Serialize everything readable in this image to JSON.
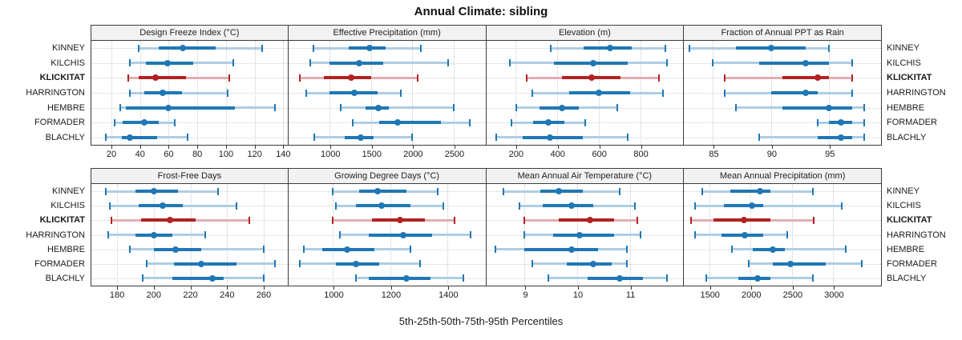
{
  "title": "Annual Climate: sibling",
  "caption": "5th-25th-50th-75th-95th Percentiles",
  "colors": {
    "series_blue": "#1f77b4",
    "series_blue_light": "#aecde4",
    "highlight_red": "#b22222",
    "highlight_red_light": "#e2aeae",
    "header_bg": "#f2f2f2",
    "panel_border": "#3c3c3c",
    "gridline": "#c9c9c9",
    "text": "#1a1a1a"
  },
  "chart_data": {
    "type": "trellis_percentile_dotplot",
    "title": "Annual Climate: sibling",
    "xlabel_caption": "5th-25th-50th-75th-95th Percentiles",
    "percentiles": [
      5,
      25,
      50,
      75,
      95
    ],
    "legend_position": "none",
    "grid": true,
    "layout": {
      "rows": 2,
      "cols": 4
    },
    "sites": [
      "KINNEY",
      "KILCHIS",
      "KLICKITAT",
      "HARRINGTON",
      "HEMBRE",
      "FORMADER",
      "BLACHLY"
    ],
    "highlight_site": "KLICKITAT",
    "panels": [
      {
        "title": "Design Freeze Index (°C)",
        "ticks": [
          20,
          40,
          60,
          80,
          100,
          120,
          140
        ],
        "domain": [
          6,
          143
        ],
        "values": [
          [
            39,
            53,
            70,
            93,
            125
          ],
          [
            33,
            44,
            59,
            77,
            105
          ],
          [
            32,
            39,
            51,
            72,
            102
          ],
          [
            33,
            43,
            56,
            69,
            101
          ],
          [
            26,
            30,
            60,
            106,
            134
          ],
          [
            22,
            28,
            43,
            53,
            64
          ],
          [
            16,
            27,
            33,
            52,
            73
          ]
        ]
      },
      {
        "title": "Effective Precipitation (mm)",
        "ticks": [
          1000,
          1500,
          2000,
          2500
        ],
        "domain": [
          500,
          2875
        ],
        "values": [
          [
            800,
            1230,
            1480,
            1680,
            2100
          ],
          [
            760,
            1000,
            1360,
            1650,
            2430
          ],
          [
            640,
            930,
            1260,
            1500,
            2060
          ],
          [
            720,
            1000,
            1300,
            1580,
            1860
          ],
          [
            1130,
            1430,
            1590,
            1720,
            2500
          ],
          [
            1280,
            1600,
            1820,
            2350,
            2700
          ],
          [
            810,
            1180,
            1380,
            1530,
            2000
          ]
        ]
      },
      {
        "title": "Elevation (m)",
        "ticks": [
          200,
          400,
          600,
          800
        ],
        "domain": [
          60,
          1003
        ],
        "values": [
          [
            370,
            530,
            655,
            760,
            920
          ],
          [
            175,
            385,
            575,
            740,
            930
          ],
          [
            255,
            425,
            565,
            705,
            890
          ],
          [
            280,
            460,
            600,
            750,
            910
          ],
          [
            205,
            315,
            425,
            505,
            690
          ],
          [
            180,
            285,
            360,
            435,
            535
          ],
          [
            110,
            235,
            365,
            525,
            740
          ]
        ]
      },
      {
        "title": "Fraction of Annual PPT as Rain",
        "ticks": [
          85,
          90,
          95
        ],
        "domain": [
          82.5,
          99.4
        ],
        "values": [
          [
            83,
            87,
            90,
            93,
            95
          ],
          [
            85,
            89,
            93,
            95,
            97
          ],
          [
            86,
            91,
            94,
            95,
            97
          ],
          [
            86,
            90,
            93,
            94,
            97
          ],
          [
            87,
            91,
            95,
            97,
            98
          ],
          [
            94,
            95,
            96,
            97,
            98
          ],
          [
            89,
            94,
            96,
            97,
            98
          ]
        ]
      },
      {
        "title": "Frost-Free Days",
        "ticks": [
          180,
          200,
          220,
          240,
          260
        ],
        "domain": [
          166,
          273
        ],
        "values": [
          [
            174,
            190,
            200,
            213,
            235
          ],
          [
            176,
            192,
            205,
            216,
            245
          ],
          [
            177,
            193,
            209,
            223,
            252
          ],
          [
            175,
            190,
            200,
            210,
            228
          ],
          [
            187,
            200,
            212,
            226,
            260
          ],
          [
            196,
            211,
            226,
            245,
            266
          ],
          [
            194,
            210,
            232,
            238,
            260
          ]
        ]
      },
      {
        "title": "Growing Degree Days (°C)",
        "ticks": [
          1000,
          1200,
          1400
        ],
        "domain": [
          844,
          1529
        ],
        "values": [
          [
            1000,
            1090,
            1155,
            1255,
            1365
          ],
          [
            1010,
            1080,
            1170,
            1270,
            1385
          ],
          [
            1000,
            1135,
            1235,
            1320,
            1425
          ],
          [
            1025,
            1125,
            1245,
            1345,
            1480
          ],
          [
            898,
            963,
            1050,
            1145,
            1270
          ],
          [
            885,
            1010,
            1080,
            1160,
            1305
          ],
          [
            1080,
            1125,
            1255,
            1340,
            1455
          ]
        ]
      },
      {
        "title": "Mean Annual Air Temperature (°C)",
        "ticks": [
          9,
          10,
          11
        ],
        "domain": [
          8.27,
          12.0
        ],
        "values": [
          [
            8.6,
            9.3,
            9.65,
            10.1,
            10.8
          ],
          [
            8.9,
            9.35,
            9.9,
            10.3,
            11.1
          ],
          [
            9.0,
            9.65,
            10.25,
            10.7,
            11.15
          ],
          [
            9.0,
            9.55,
            10.05,
            10.7,
            11.2
          ],
          [
            8.45,
            9.0,
            9.9,
            10.4,
            10.95
          ],
          [
            9.15,
            9.8,
            10.3,
            10.65,
            10.95
          ],
          [
            9.45,
            10.2,
            10.8,
            11.25,
            11.7
          ]
        ]
      },
      {
        "title": "Mean Annual Precipitation (mm)",
        "ticks": [
          1500,
          2000,
          2500,
          3000
        ],
        "domain": [
          1195,
          3568
        ],
        "values": [
          [
            1415,
            1755,
            2110,
            2240,
            2755
          ],
          [
            1325,
            1675,
            2020,
            2150,
            3100
          ],
          [
            1275,
            1550,
            1915,
            2235,
            2765
          ],
          [
            1325,
            1645,
            1930,
            2155,
            2440
          ],
          [
            1770,
            2030,
            2265,
            2415,
            3150
          ],
          [
            1980,
            2270,
            2485,
            2910,
            3345
          ],
          [
            1460,
            1855,
            2085,
            2235,
            2750
          ]
        ]
      }
    ]
  }
}
